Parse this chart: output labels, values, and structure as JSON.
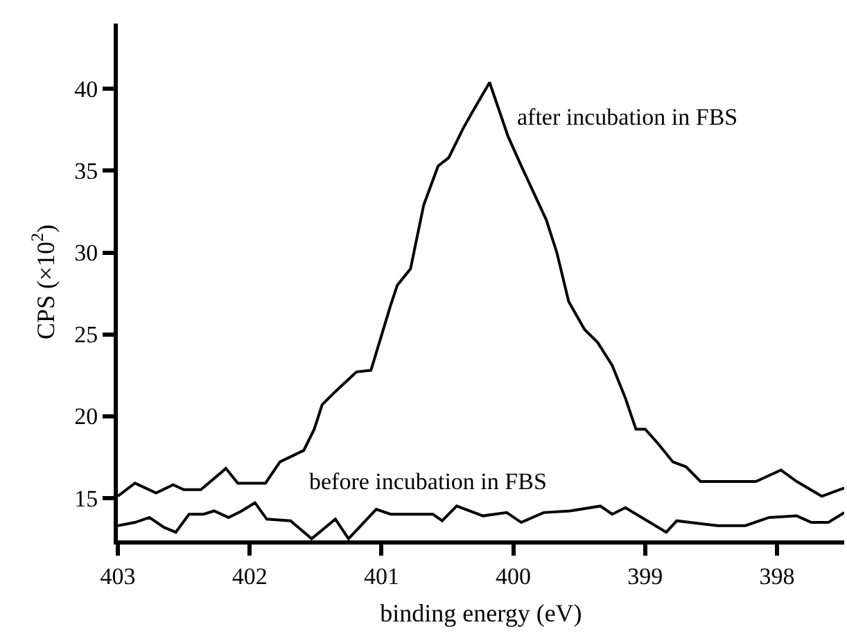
{
  "chart_data": {
    "type": "line",
    "xlabel": "binding energy (eV)",
    "ylabel": "CPS (×10$^{2}$)",
    "xlim": [
      403,
      397.49
    ],
    "xticks": [
      403,
      402,
      401,
      400,
      399,
      398
    ],
    "ylim": [
      12.4,
      44
    ],
    "yticks": [
      15,
      20,
      25,
      30,
      35,
      40
    ],
    "grid": false,
    "legend": false,
    "marker": "none",
    "line_style": "solid",
    "series": [
      {
        "name": "after incubation in FBS",
        "color": "#000000",
        "x": [
          403,
          402.87,
          402.71,
          402.58,
          402.5,
          402.37,
          402.18,
          402.09,
          401.88,
          401.77,
          401.59,
          401.51,
          401.45,
          401.35,
          401.19,
          401.08,
          400.93,
          400.88,
          400.78,
          400.68,
          400.57,
          400.49,
          400.38,
          400.31,
          400.18,
          400.04,
          399.94,
          399.75,
          399.67,
          399.58,
          399.46,
          399.36,
          399.25,
          399.15,
          399.07,
          399.0,
          398.9,
          398.79,
          398.69,
          398.58,
          398.16,
          397.97,
          397.85,
          397.66,
          397.49
        ],
        "values": [
          15.1,
          15.9,
          15.3,
          15.8,
          15.5,
          15.5,
          16.8,
          15.9,
          15.9,
          17.2,
          17.9,
          19.2,
          20.7,
          21.5,
          22.7,
          22.8,
          26.8,
          28,
          29,
          32.9,
          35.3,
          35.8,
          37.6,
          38.6,
          40.4,
          37.1,
          35.3,
          32,
          30,
          27,
          25.3,
          24.5,
          23.1,
          21.1,
          19.2,
          19.2,
          18.3,
          17.2,
          16.9,
          16,
          16,
          16.7,
          16,
          15.1,
          15.6
        ]
      },
      {
        "name": "before incubation in FBS",
        "color": "#000000",
        "x": [
          403,
          402.87,
          402.76,
          402.65,
          402.56,
          402.46,
          402.35,
          402.27,
          402.16,
          402.06,
          401.96,
          401.87,
          401.69,
          401.53,
          401.35,
          401.25,
          401.04,
          400.93,
          400.61,
          400.54,
          400.43,
          400.23,
          400.05,
          399.94,
          399.77,
          399.57,
          399.34,
          399.25,
          399.15,
          398.84,
          398.76,
          398.45,
          398.24,
          398.06,
          397.85,
          397.74,
          397.61,
          397.49
        ],
        "values": [
          13.3,
          13.5,
          13.8,
          13.2,
          12.9,
          14,
          14,
          14.2,
          13.8,
          14.2,
          14.7,
          13.7,
          13.6,
          12.5,
          13.7,
          12.5,
          14.3,
          14,
          14,
          13.6,
          14.5,
          13.9,
          14.1,
          13.5,
          14.1,
          14.2,
          14.5,
          14,
          14.4,
          12.9,
          13.6,
          13.3,
          13.3,
          13.8,
          13.9,
          13.5,
          13.5,
          14.1
        ]
      }
    ]
  }
}
